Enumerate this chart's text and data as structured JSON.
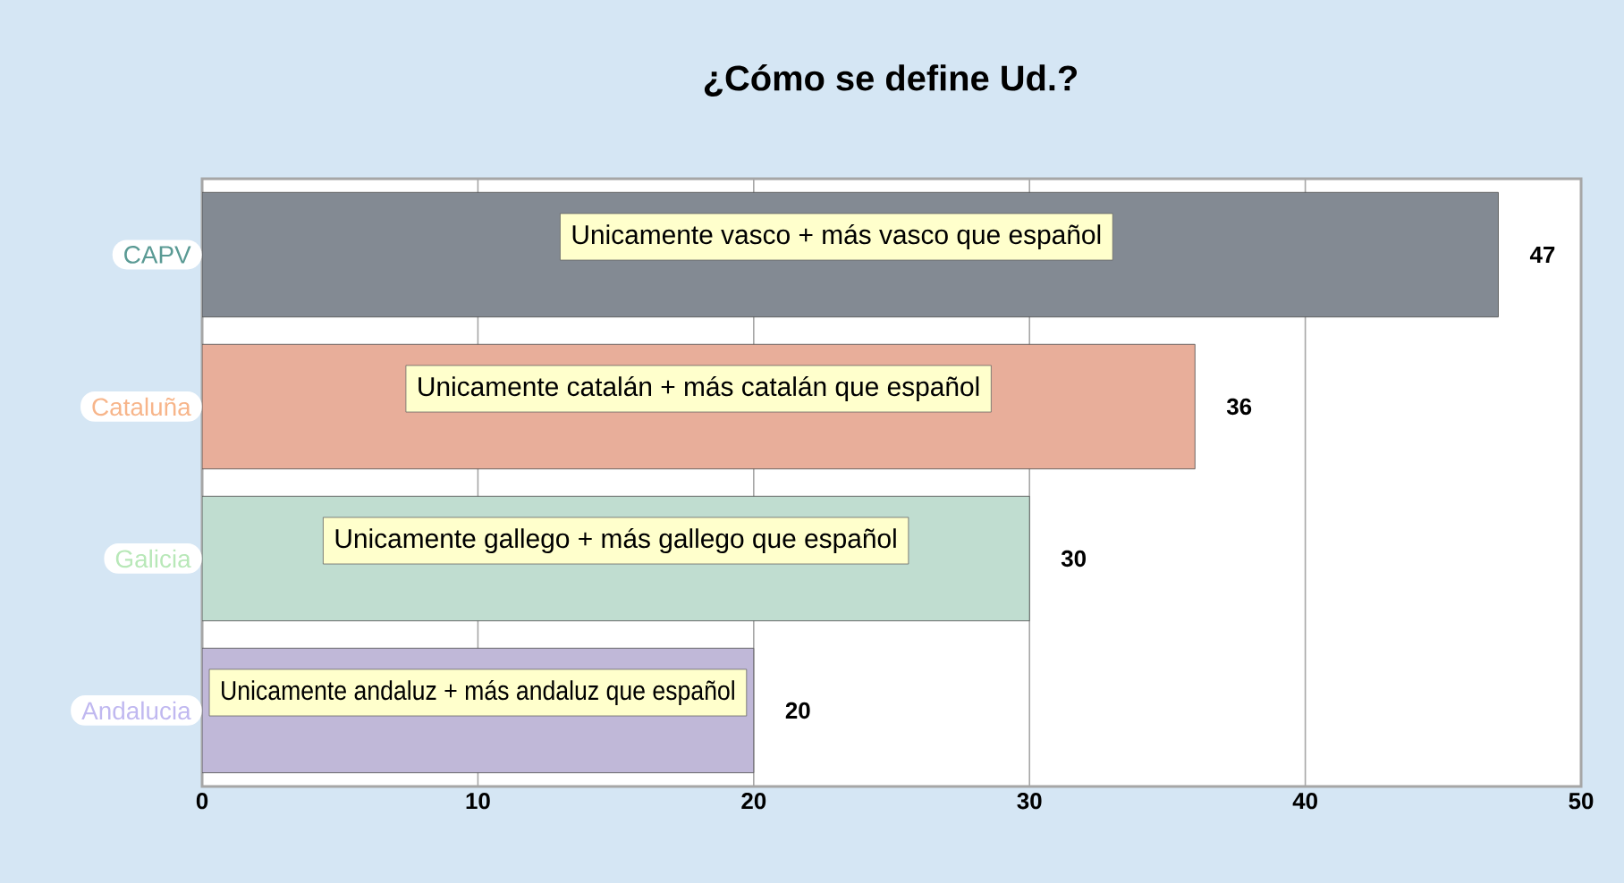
{
  "chart_data": {
    "type": "bar",
    "orientation": "horizontal",
    "title": "¿Cómo se define Ud.?",
    "categories": [
      "CAPV",
      "Cataluña",
      "Galicia",
      "Andalucia"
    ],
    "values": [
      47,
      36,
      30,
      20
    ],
    "colors": [
      "#838a93",
      "#e8ae9a",
      "#c0ddd0",
      "#c0b8d8"
    ],
    "xlim": [
      0,
      50
    ],
    "xticks": [
      0,
      10,
      20,
      30,
      40,
      50
    ],
    "grid": "x",
    "data_labels": true,
    "annotations": [
      {
        "text": "Unicamente vasco + más vasco que español",
        "x": 23,
        "y": "CAPV"
      },
      {
        "text": "Unicamente catalán + más catalán que español",
        "x": 18,
        "y": "Cataluña"
      },
      {
        "text": "Unicamente gallego + más gallego que español",
        "x": 15,
        "y": "Galicia"
      },
      {
        "text": "Unicamente andaluz + más andaluz que español",
        "x": 10,
        "y": "Andalucia"
      }
    ]
  }
}
